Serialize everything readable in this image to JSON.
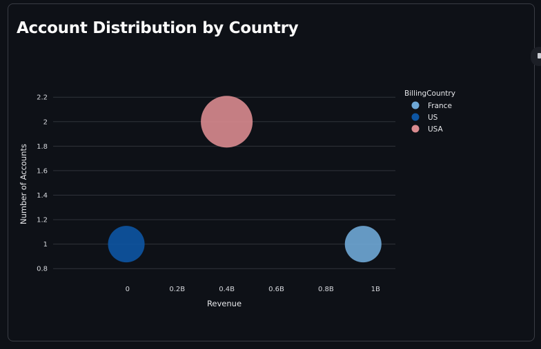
{
  "card": {
    "title": "Account Distribution by Country"
  },
  "chart_data": {
    "type": "scatter",
    "title": "Account Distribution by Country",
    "xlabel": "Revenue",
    "ylabel": "Number of Accounts",
    "xlim": [
      -0.3,
      1.08
    ],
    "ylim": [
      0.7,
      2.28
    ],
    "x_ticks": [
      {
        "value": 0,
        "label": "0"
      },
      {
        "value": 0.2,
        "label": "0.2B"
      },
      {
        "value": 0.4,
        "label": "0.4B"
      },
      {
        "value": 0.6,
        "label": "0.6B"
      },
      {
        "value": 0.8,
        "label": "0.8B"
      },
      {
        "value": 1.0,
        "label": "1B"
      }
    ],
    "y_ticks": [
      {
        "value": 0.8,
        "label": "0.8"
      },
      {
        "value": 1.0,
        "label": "1"
      },
      {
        "value": 1.2,
        "label": "1.2"
      },
      {
        "value": 1.4,
        "label": "1.4"
      },
      {
        "value": 1.6,
        "label": "1.6"
      },
      {
        "value": 1.8,
        "label": "1.8"
      },
      {
        "value": 2.0,
        "label": "2"
      },
      {
        "value": 2.2,
        "label": "2.2"
      }
    ],
    "grid": "horizontal",
    "legend": {
      "title": "BillingCountry",
      "position": "right"
    },
    "series": [
      {
        "name": "France",
        "color": "#6fa8d6",
        "points": [
          {
            "x": 0.95,
            "y": 1,
            "size": 1
          }
        ]
      },
      {
        "name": "US",
        "color": "#0d55a3",
        "points": [
          {
            "x": -0.005,
            "y": 1,
            "size": 1
          }
        ]
      },
      {
        "name": "USA",
        "color": "#d98b8f",
        "points": [
          {
            "x": 0.4,
            "y": 2,
            "size": 2
          }
        ]
      }
    ]
  }
}
